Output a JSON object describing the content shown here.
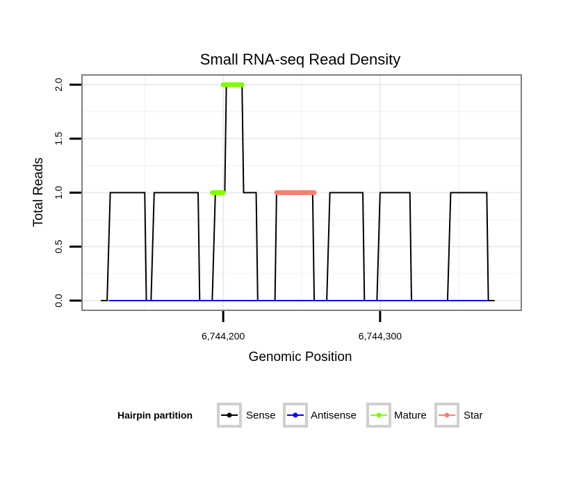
{
  "chart_data": {
    "type": "line",
    "title": "Small RNA-seq Read Density",
    "xlabel": "Genomic Position",
    "ylabel": "Total Reads",
    "xlim": [
      6744110,
      6744390
    ],
    "ylim": [
      -0.09,
      2.09
    ],
    "x_ticks": [
      {
        "value": 6744200,
        "label": "6,744,200"
      },
      {
        "value": 6744300,
        "label": "6,744,300"
      }
    ],
    "y_ticks": [
      {
        "value": 0.0,
        "label": "0.0"
      },
      {
        "value": 0.5,
        "label": "0.5"
      },
      {
        "value": 1.0,
        "label": "1.0"
      },
      {
        "value": 1.5,
        "label": "1.5"
      },
      {
        "value": 2.0,
        "label": "2.0"
      }
    ],
    "minor_x_ticks": [
      6744150,
      6744250,
      6744350
    ],
    "minor_y_ticks": [
      0.25,
      0.75,
      1.25,
      1.75
    ],
    "legend": {
      "title": "Hairpin partition",
      "position": "bottom",
      "entries": [
        {
          "label": "Sense",
          "color": "#000000"
        },
        {
          "label": "Antisense",
          "color": "#0000ff"
        },
        {
          "label": "Mature",
          "color": "#7fff00"
        },
        {
          "label": "Star",
          "color": "#fa8072"
        }
      ]
    },
    "series": [
      {
        "name": "Sense",
        "color": "#000000",
        "x": [
          6744122,
          6744126,
          6744128,
          6744150,
          6744151,
          6744154,
          6744156,
          6744184,
          6744185,
          6744193,
          6744195,
          6744201,
          6744202,
          6744212,
          6744213,
          6744221,
          6744222,
          6744233,
          6744234,
          6744257,
          6744258,
          6744266,
          6744268,
          6744289,
          6744290,
          6744298,
          6744300,
          6744319,
          6744320,
          6744343,
          6744345,
          6744368,
          6744369,
          6744373
        ],
        "y": [
          0,
          0,
          1,
          1,
          0,
          0,
          1,
          1,
          0,
          0,
          1,
          1,
          2,
          2,
          1,
          1,
          0,
          0,
          1,
          1,
          0,
          0,
          1,
          1,
          0,
          0,
          1,
          1,
          0,
          0,
          1,
          1,
          0,
          0
        ]
      },
      {
        "name": "Antisense",
        "color": "#0000ff",
        "x": [
          6744127,
          6744369
        ],
        "y": [
          0,
          0
        ]
      },
      {
        "name": "Mature",
        "color": "#7fff00",
        "segments": [
          {
            "x": [
              6744193,
              6744200
            ],
            "y": [
              1,
              1
            ]
          },
          {
            "x": [
              6744200,
              6744212
            ],
            "y": [
              2,
              2
            ]
          }
        ]
      },
      {
        "name": "Star",
        "color": "#fa8072",
        "segments": [
          {
            "x": [
              6744234,
              6744258
            ],
            "y": [
              1,
              1
            ]
          }
        ]
      }
    ]
  }
}
